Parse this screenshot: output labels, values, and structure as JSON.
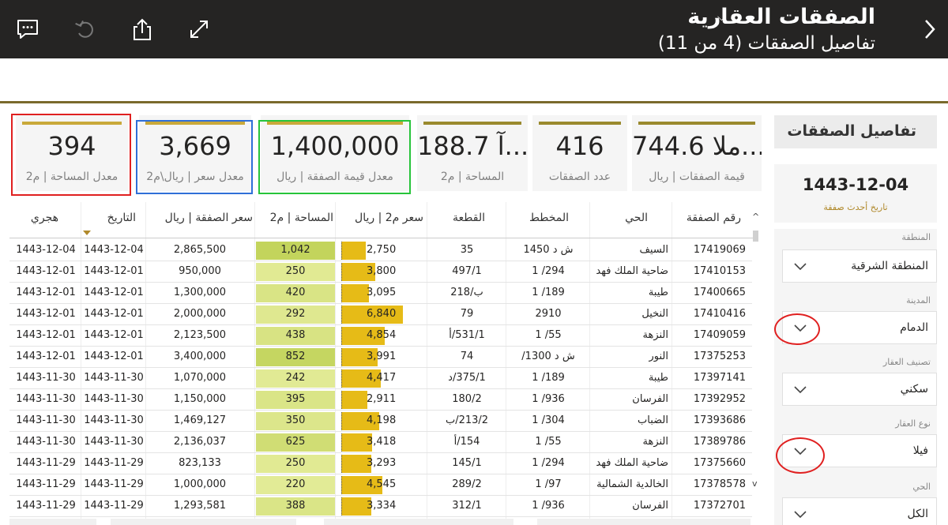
{
  "header": {
    "title": "الصفقات العقارية",
    "subtitle": "تفاصيل الصفقات (4 من 11)"
  },
  "kpis": [
    {
      "value": "394",
      "label": "معدل المساحة | م2"
    },
    {
      "value": "3,669",
      "label": "معدل سعر | ريال\\م2"
    },
    {
      "value": "1,400,000",
      "label": "معدل قيمة الصفقة | ريال"
    },
    {
      "value": "188.7 آ...",
      "label": "المساحة | م2"
    },
    {
      "value": "416",
      "label": "عدد الصفقات"
    },
    {
      "value": "744.6 ملا...",
      "label": "قيمة الصفقات | ريال"
    }
  ],
  "panel": {
    "title": "تفاصيل الصفقات",
    "latest_date": "1443-12-04",
    "latest_date_label": "تاريخ أحدث صفقة",
    "slicers": [
      {
        "label": "المنطقة",
        "value": "المنطقة الشرقية"
      },
      {
        "label": "المدينة",
        "value": "الدمام"
      },
      {
        "label": "تصنيف العقار",
        "value": "سكني"
      },
      {
        "label": "نوع العقار",
        "value": "فيلا"
      },
      {
        "label": "الحي",
        "value": "الكل"
      }
    ]
  },
  "table": {
    "columns": {
      "deal_no": "رقم الصفقة",
      "district": "الحي",
      "plan": "المخطط",
      "plot": "القطعة",
      "price_m2": "سعر م2 | ريال",
      "area": "المساحة | م2",
      "deal_price": "سعر الصفقة | ريال",
      "date": "التاريخ",
      "hijri": "هجري"
    },
    "rows": [
      {
        "deal_no": "17419069",
        "district": "السيف",
        "plan": "ش د 1450",
        "plot": "35",
        "price_m2": "2,750",
        "price_m2_num": 2750,
        "area": "1,042",
        "area_num": 1042,
        "deal_price": "2,865,500",
        "date": "1443-12-04",
        "hijri": "1443-12-04"
      },
      {
        "deal_no": "17410153",
        "district": "ضاحية الملك فهد",
        "plan": "294/ 1",
        "plot": "497/1",
        "price_m2": "3,800",
        "price_m2_num": 3800,
        "area": "250",
        "area_num": 250,
        "deal_price": "950,000",
        "date": "1443-12-01",
        "hijri": "1443-12-01"
      },
      {
        "deal_no": "17400665",
        "district": "طيبة",
        "plan": "189/ 1",
        "plot": "ب/218",
        "price_m2": "3,095",
        "price_m2_num": 3095,
        "area": "420",
        "area_num": 420,
        "deal_price": "1,300,000",
        "date": "1443-12-01",
        "hijri": "1443-12-01"
      },
      {
        "deal_no": "17410416",
        "district": "النخيل",
        "plan": "2910",
        "plot": "79",
        "price_m2": "6,840",
        "price_m2_num": 6840,
        "area": "292",
        "area_num": 292,
        "deal_price": "2,000,000",
        "date": "1443-12-01",
        "hijri": "1443-12-01"
      },
      {
        "deal_no": "17409059",
        "district": "النزهة",
        "plan": "55/ 1",
        "plot": "531/1/أ",
        "price_m2": "4,854",
        "price_m2_num": 4854,
        "area": "438",
        "area_num": 438,
        "deal_price": "2,123,500",
        "date": "1443-12-01",
        "hijri": "1443-12-01"
      },
      {
        "deal_no": "17375253",
        "district": "النور",
        "plan": "ش د 1300/",
        "plot": "74",
        "price_m2": "3,991",
        "price_m2_num": 3991,
        "area": "852",
        "area_num": 852,
        "deal_price": "3,400,000",
        "date": "1443-12-01",
        "hijri": "1443-12-01"
      },
      {
        "deal_no": "17397141",
        "district": "طيبة",
        "plan": "189/ 1",
        "plot": "375/1/د",
        "price_m2": "4,417",
        "price_m2_num": 4417,
        "area": "242",
        "area_num": 242,
        "deal_price": "1,070,000",
        "date": "1443-11-30",
        "hijri": "1443-11-30"
      },
      {
        "deal_no": "17392952",
        "district": "الفرسان",
        "plan": "936/ 1",
        "plot": "180/2",
        "price_m2": "2,911",
        "price_m2_num": 2911,
        "area": "395",
        "area_num": 395,
        "deal_price": "1,150,000",
        "date": "1443-11-30",
        "hijri": "1443-11-30"
      },
      {
        "deal_no": "17393686",
        "district": "الضباب",
        "plan": "304/ 1",
        "plot": "213/2/ب",
        "price_m2": "4,198",
        "price_m2_num": 4198,
        "area": "350",
        "area_num": 350,
        "deal_price": "1,469,127",
        "date": "1443-11-30",
        "hijri": "1443-11-30"
      },
      {
        "deal_no": "17389786",
        "district": "النزهة",
        "plan": "55/ 1",
        "plot": "154/أ",
        "price_m2": "3,418",
        "price_m2_num": 3418,
        "area": "625",
        "area_num": 625,
        "deal_price": "2,136,037",
        "date": "1443-11-30",
        "hijri": "1443-11-30"
      },
      {
        "deal_no": "17375660",
        "district": "ضاحية الملك فهد",
        "plan": "294/ 1",
        "plot": "145/1",
        "price_m2": "3,293",
        "price_m2_num": 3293,
        "area": "250",
        "area_num": 250,
        "deal_price": "823,133",
        "date": "1443-11-29",
        "hijri": "1443-11-29"
      },
      {
        "deal_no": "17378578",
        "district": "الخالدية الشمالية",
        "plan": "97/ 1",
        "plot": "289/2",
        "price_m2": "4,545",
        "price_m2_num": 4545,
        "area": "220",
        "area_num": 220,
        "deal_price": "1,000,000",
        "date": "1443-11-29",
        "hijri": "1443-11-29"
      },
      {
        "deal_no": "17372701",
        "district": "الفرسان",
        "plan": "936/ 1",
        "plot": "312/1",
        "price_m2": "3,334",
        "price_m2_num": 3334,
        "area": "388",
        "area_num": 388,
        "deal_price": "1,293,581",
        "date": "1443-11-29",
        "hijri": "1443-11-29"
      }
    ]
  },
  "colors": {
    "header_bg": "#252423",
    "accent_gold": "#c9a93a",
    "price_bar": "#e6bb17",
    "area_light": "#ecf2a8",
    "area_dark": "#c3d45c",
    "highlight_red": "#e02020",
    "highlight_blue": "#2f6fd8",
    "highlight_green": "#27c43a"
  },
  "icons": [
    "chevron-right-icon",
    "chevron-down-icon",
    "comment-icon",
    "undo-icon",
    "share-icon",
    "expand-icon"
  ]
}
